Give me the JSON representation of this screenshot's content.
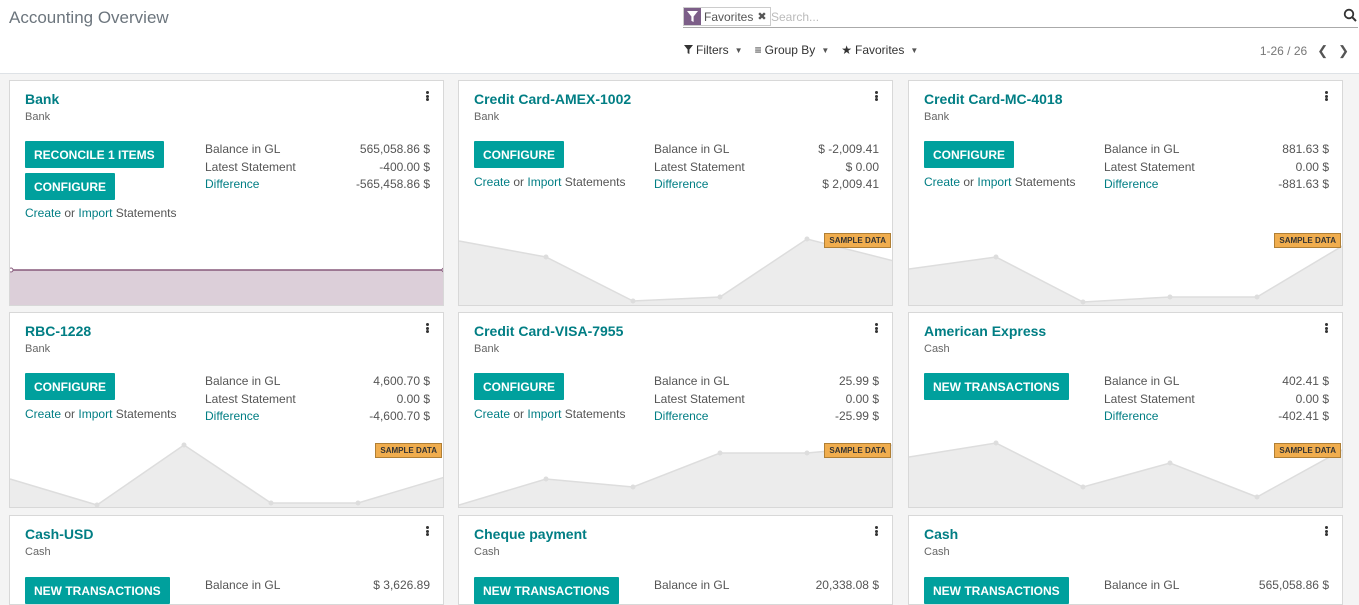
{
  "header": {
    "title": "Accounting Overview",
    "search": {
      "facet_label": "Favorites",
      "placeholder": "Search..."
    },
    "controls": {
      "filters": "Filters",
      "group_by": "Group By",
      "favorites": "Favorites"
    },
    "pager": {
      "value": "1-26 / 26"
    }
  },
  "colors": {
    "accent": "#00a09d",
    "title": "#017e84",
    "facet": "#7c5e88",
    "badge": "#f0ad4e"
  },
  "cards": [
    {
      "title": "Bank",
      "subtitle": "Bank",
      "buttons": [
        "RECONCILE 1 ITEMS",
        "CONFIGURE"
      ],
      "create": {
        "create": "Create",
        "or": "or",
        "import": "Import",
        "statements": "Statements"
      },
      "balance_label": "Balance in GL",
      "balance_value": "565,058.86 $",
      "latest_label": "Latest Statement",
      "latest_value": "-400.00 $",
      "difference_label": "Difference",
      "difference_value": "-565,458.86 $",
      "sample": ""
    },
    {
      "title": "Credit Card-AMEX-1002",
      "subtitle": "Bank",
      "buttons": [
        "CONFIGURE"
      ],
      "create": {
        "create": "Create",
        "or": "or",
        "import": "Import",
        "statements": "Statements"
      },
      "balance_label": "Balance in GL",
      "balance_value": "$ -2,009.41",
      "latest_label": "Latest Statement",
      "latest_value": "$ 0.00",
      "difference_label": "Difference",
      "difference_value": "$ 2,009.41",
      "sample": "SAMPLE DATA"
    },
    {
      "title": "Credit Card-MC-4018",
      "subtitle": "Bank",
      "buttons": [
        "CONFIGURE"
      ],
      "create": {
        "create": "Create",
        "or": "or",
        "import": "Import",
        "statements": "Statements"
      },
      "balance_label": "Balance in GL",
      "balance_value": "881.63 $",
      "latest_label": "Latest Statement",
      "latest_value": "0.00 $",
      "difference_label": "Difference",
      "difference_value": "-881.63 $",
      "sample": "SAMPLE DATA"
    },
    {
      "title": "RBC-1228",
      "subtitle": "Bank",
      "buttons": [
        "CONFIGURE"
      ],
      "create": {
        "create": "Create",
        "or": "or",
        "import": "Import",
        "statements": "Statements"
      },
      "balance_label": "Balance in GL",
      "balance_value": "4,600.70 $",
      "latest_label": "Latest Statement",
      "latest_value": "0.00 $",
      "difference_label": "Difference",
      "difference_value": "-4,600.70 $",
      "sample": "SAMPLE DATA"
    },
    {
      "title": "Credit Card-VISA-7955",
      "subtitle": "Bank",
      "buttons": [
        "CONFIGURE"
      ],
      "create": {
        "create": "Create",
        "or": "or",
        "import": "Import",
        "statements": "Statements"
      },
      "balance_label": "Balance in GL",
      "balance_value": "25.99 $",
      "latest_label": "Latest Statement",
      "latest_value": "0.00 $",
      "difference_label": "Difference",
      "difference_value": "-25.99 $",
      "sample": "SAMPLE DATA"
    },
    {
      "title": "American Express",
      "subtitle": "Cash",
      "buttons": [
        "NEW TRANSACTIONS"
      ],
      "balance_label": "Balance in GL",
      "balance_value": "402.41 $",
      "latest_label": "Latest Statement",
      "latest_value": "0.00 $",
      "difference_label": "Difference",
      "difference_value": "-402.41 $",
      "sample": "SAMPLE DATA"
    },
    {
      "title": "Cash-USD",
      "subtitle": "Cash",
      "buttons": [
        "NEW TRANSACTIONS"
      ],
      "balance_label": "Balance in GL",
      "balance_value": "$ 3,626.89"
    },
    {
      "title": "Cheque payment",
      "subtitle": "Cash",
      "buttons": [
        "NEW TRANSACTIONS"
      ],
      "balance_label": "Balance in GL",
      "balance_value": "20,338.08 $"
    },
    {
      "title": "Cash",
      "subtitle": "Cash",
      "buttons": [
        "NEW TRANSACTIONS"
      ],
      "balance_label": "Balance in GL",
      "balance_value": "565,058.86 $"
    }
  ]
}
